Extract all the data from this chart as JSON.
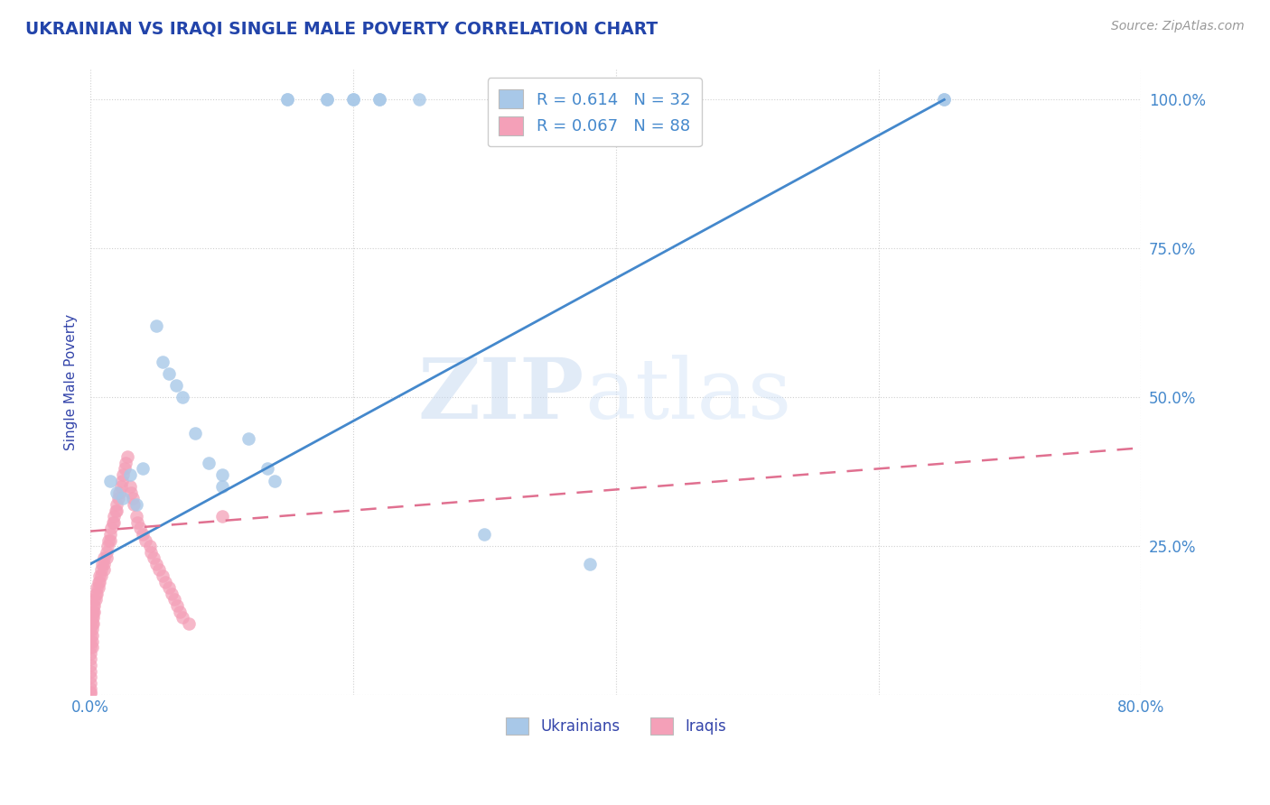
{
  "title": "UKRAINIAN VS IRAQI SINGLE MALE POVERTY CORRELATION CHART",
  "source_text": "Source: ZipAtlas.com",
  "ylabel": "Single Male Poverty",
  "xlim": [
    0.0,
    0.8
  ],
  "ylim": [
    0.0,
    1.05
  ],
  "xticks": [
    0.0,
    0.2,
    0.4,
    0.6,
    0.8
  ],
  "xticklabels": [
    "0.0%",
    "",
    "",
    "",
    "80.0%"
  ],
  "yticks": [
    0.0,
    0.25,
    0.5,
    0.75,
    1.0
  ],
  "yticklabels": [
    "",
    "25.0%",
    "50.0%",
    "75.0%",
    "100.0%"
  ],
  "ukrainian_R": 0.614,
  "ukrainian_N": 32,
  "iraqi_R": 0.067,
  "iraqi_N": 88,
  "ukrainian_color": "#a8c8e8",
  "iraqi_color": "#f4a0b8",
  "ukrainian_line_color": "#4488cc",
  "iraqi_line_color": "#e07090",
  "background_color": "#ffffff",
  "grid_color": "#d0d0d0",
  "title_color": "#2244aa",
  "axis_label_color": "#3344aa",
  "tick_color": "#4488cc",
  "watermark_zip": "ZIP",
  "watermark_atlas": "atlas",
  "ukrainians_label": "Ukrainians",
  "iraqis_label": "Iraqis",
  "ukrainian_x": [
    0.015,
    0.02,
    0.025,
    0.03,
    0.035,
    0.04,
    0.05,
    0.055,
    0.06,
    0.065,
    0.07,
    0.08,
    0.09,
    0.1,
    0.1,
    0.12,
    0.135,
    0.14,
    0.15,
    0.18,
    0.2,
    0.22,
    0.25,
    0.3,
    0.38,
    0.65,
    0.15,
    0.18,
    0.2,
    0.22,
    0.38,
    0.65
  ],
  "ukrainian_y": [
    0.36,
    0.34,
    0.33,
    0.37,
    0.32,
    0.38,
    0.62,
    0.56,
    0.54,
    0.52,
    0.5,
    0.44,
    0.39,
    0.37,
    0.35,
    0.43,
    0.38,
    0.36,
    1.0,
    1.0,
    1.0,
    1.0,
    1.0,
    0.27,
    0.22,
    1.0,
    1.0,
    1.0,
    1.0,
    1.0,
    1.0,
    1.0
  ],
  "iraqi_x": [
    0.0,
    0.0,
    0.0,
    0.0,
    0.0,
    0.0,
    0.0,
    0.0,
    0.0,
    0.0,
    0.0,
    0.0,
    0.0,
    0.0,
    0.0,
    0.001,
    0.001,
    0.001,
    0.001,
    0.001,
    0.001,
    0.001,
    0.002,
    0.002,
    0.002,
    0.002,
    0.003,
    0.003,
    0.003,
    0.004,
    0.004,
    0.005,
    0.005,
    0.006,
    0.006,
    0.007,
    0.007,
    0.008,
    0.008,
    0.009,
    0.01,
    0.01,
    0.01,
    0.012,
    0.012,
    0.013,
    0.014,
    0.015,
    0.015,
    0.016,
    0.017,
    0.018,
    0.018,
    0.019,
    0.02,
    0.02,
    0.021,
    0.022,
    0.023,
    0.024,
    0.025,
    0.026,
    0.027,
    0.028,
    0.03,
    0.031,
    0.032,
    0.033,
    0.035,
    0.036,
    0.038,
    0.04,
    0.042,
    0.045,
    0.046,
    0.048,
    0.05,
    0.052,
    0.055,
    0.057,
    0.06,
    0.062,
    0.064,
    0.066,
    0.068,
    0.07,
    0.075,
    0.1
  ],
  "iraqi_y": [
    0.13,
    0.12,
    0.11,
    0.1,
    0.09,
    0.08,
    0.07,
    0.06,
    0.05,
    0.04,
    0.03,
    0.02,
    0.01,
    0.005,
    0.003,
    0.14,
    0.13,
    0.12,
    0.11,
    0.1,
    0.09,
    0.08,
    0.15,
    0.14,
    0.13,
    0.12,
    0.16,
    0.15,
    0.14,
    0.17,
    0.16,
    0.18,
    0.17,
    0.19,
    0.18,
    0.2,
    0.19,
    0.21,
    0.2,
    0.22,
    0.23,
    0.22,
    0.21,
    0.24,
    0.23,
    0.25,
    0.26,
    0.27,
    0.26,
    0.28,
    0.29,
    0.3,
    0.29,
    0.31,
    0.32,
    0.31,
    0.33,
    0.34,
    0.35,
    0.36,
    0.37,
    0.38,
    0.39,
    0.4,
    0.35,
    0.34,
    0.33,
    0.32,
    0.3,
    0.29,
    0.28,
    0.27,
    0.26,
    0.25,
    0.24,
    0.23,
    0.22,
    0.21,
    0.2,
    0.19,
    0.18,
    0.17,
    0.16,
    0.15,
    0.14,
    0.13,
    0.12,
    0.3
  ],
  "uk_line_x0": 0.0,
  "uk_line_y0": 0.22,
  "uk_line_x1": 0.65,
  "uk_line_y1": 1.0,
  "iq_line_x0": 0.0,
  "iq_line_y0": 0.275,
  "iq_line_x1": 0.8,
  "iq_line_y1": 0.415
}
